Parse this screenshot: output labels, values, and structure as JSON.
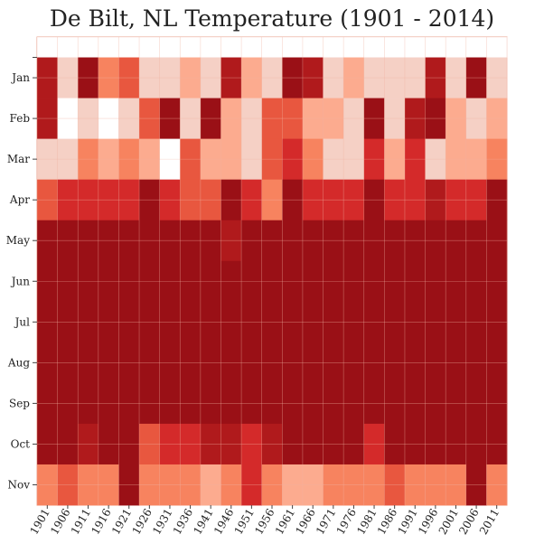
{
  "chart_data": {
    "type": "heatmap",
    "title": "De Bilt, NL Temperature (1901 - 2014)",
    "xlabel": "",
    "ylabel": "",
    "x_tick_labels": [
      "1901",
      "1906",
      "1911",
      "1916",
      "1921",
      "1926",
      "1931",
      "1936",
      "1941",
      "1946",
      "1951",
      "1956",
      "1961",
      "1966",
      "1971",
      "1976",
      "1981",
      "1986",
      "1991",
      "1996",
      "2001",
      "2006",
      "2011"
    ],
    "y_tick_labels": [
      "",
      "Jan",
      "Feb",
      "Mar",
      "Apr",
      "May",
      "Jun",
      "Jul",
      "Aug",
      "Sep",
      "Oct",
      "Nov"
    ],
    "x_range": [
      1901,
      2014
    ],
    "bin_width_years": 5,
    "grid": true,
    "colors": [
      "#ffffff",
      "#f5d0c5",
      "#fcab8f",
      "#f7835f",
      "#e8573f",
      "#d42a2a",
      "#b01a1c",
      "#9a1016"
    ],
    "levels": [
      [
        0,
        0,
        0,
        0,
        0,
        0,
        0,
        0,
        0,
        0,
        0,
        0,
        0,
        0,
        0,
        0,
        0,
        0,
        0,
        0,
        0,
        0,
        0
      ],
      [
        6,
        1,
        7,
        3,
        4,
        1,
        1,
        2,
        1,
        6,
        2,
        1,
        7,
        6,
        1,
        2,
        1,
        1,
        1,
        6,
        1,
        7,
        1
      ],
      [
        6,
        0,
        1,
        0,
        1,
        4,
        7,
        1,
        7,
        2,
        1,
        4,
        4,
        2,
        2,
        1,
        7,
        1,
        6,
        7,
        2,
        1,
        2
      ],
      [
        1,
        1,
        3,
        2,
        3,
        2,
        0,
        4,
        2,
        2,
        1,
        4,
        5,
        3,
        1,
        1,
        5,
        2,
        5,
        1,
        2,
        2,
        3
      ],
      [
        4,
        5,
        5,
        5,
        5,
        7,
        5,
        4,
        4,
        7,
        5,
        3,
        7,
        5,
        5,
        5,
        7,
        5,
        5,
        6,
        5,
        5,
        7
      ],
      [
        7,
        7,
        7,
        7,
        7,
        7,
        7,
        7,
        7,
        6,
        7,
        7,
        7,
        7,
        7,
        7,
        7,
        7,
        7,
        7,
        7,
        7,
        7
      ],
      [
        7,
        7,
        7,
        7,
        7,
        7,
        7,
        7,
        7,
        7,
        7,
        7,
        7,
        7,
        7,
        7,
        7,
        7,
        7,
        7,
        7,
        7,
        7
      ],
      [
        7,
        7,
        7,
        7,
        7,
        7,
        7,
        7,
        7,
        7,
        7,
        7,
        7,
        7,
        7,
        7,
        7,
        7,
        7,
        7,
        7,
        7,
        7
      ],
      [
        7,
        7,
        7,
        7,
        7,
        7,
        7,
        7,
        7,
        7,
        7,
        7,
        7,
        7,
        7,
        7,
        7,
        7,
        7,
        7,
        7,
        7,
        7
      ],
      [
        7,
        7,
        7,
        7,
        7,
        7,
        7,
        7,
        7,
        7,
        7,
        7,
        7,
        7,
        7,
        7,
        7,
        7,
        7,
        7,
        7,
        7,
        7
      ],
      [
        7,
        7,
        6,
        7,
        7,
        4,
        5,
        5,
        6,
        6,
        5,
        6,
        7,
        7,
        7,
        7,
        5,
        7,
        7,
        7,
        7,
        7,
        7
      ],
      [
        3,
        4,
        3,
        3,
        7,
        3,
        3,
        3,
        2,
        3,
        5,
        3,
        2,
        2,
        3,
        3,
        3,
        4,
        3,
        3,
        3,
        7,
        3
      ]
    ]
  }
}
